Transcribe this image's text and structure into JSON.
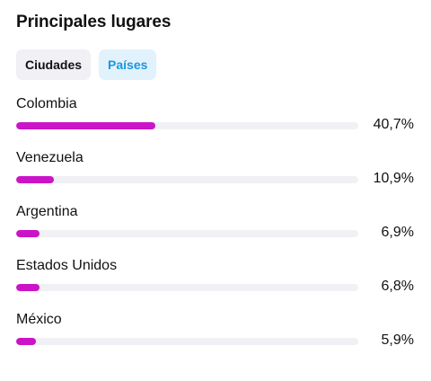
{
  "header": {
    "title": "Principales lugares"
  },
  "tabs": [
    {
      "label": "Ciudades",
      "active": false
    },
    {
      "label": "Países",
      "active": true
    }
  ],
  "colors": {
    "bar_fill": "#cb14c8",
    "bar_track": "#f1f1f5",
    "active_tab_bg": "#e2f2fd",
    "active_tab_text": "#1a96e0",
    "inactive_tab_bg": "#f0f0f5"
  },
  "places": [
    {
      "name": "Colombia",
      "value_label": "40,7%",
      "percent": 40.7
    },
    {
      "name": "Venezuela",
      "value_label": "10,9%",
      "percent": 10.9
    },
    {
      "name": "Argentina",
      "value_label": "6,9%",
      "percent": 6.9
    },
    {
      "name": "Estados Unidos",
      "value_label": "6,8%",
      "percent": 6.8
    },
    {
      "name": "México",
      "value_label": "5,9%",
      "percent": 5.9
    }
  ]
}
